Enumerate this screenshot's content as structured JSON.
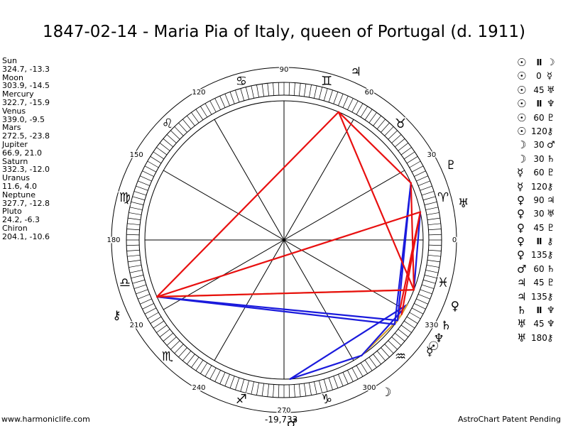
{
  "title": "1847-02-14 - Maria Pia of Italy, queen of Portugal (d. 1911)",
  "planets": [
    {
      "name": "Sun",
      "value": "324.7, -13.3"
    },
    {
      "name": "Moon",
      "value": "303.9, -14.5"
    },
    {
      "name": "Mercury",
      "value": "322.7, -15.9"
    },
    {
      "name": "Venus",
      "value": "339.0, -9.5"
    },
    {
      "name": "Mars",
      "value": "272.5, -23.8"
    },
    {
      "name": "Jupiter",
      "value": "66.9, 21.0"
    },
    {
      "name": "Saturn",
      "value": "332.3, -12.0"
    },
    {
      "name": "Uranus",
      "value": "11.6, 4.0"
    },
    {
      "name": "Neptune",
      "value": "327.7, -12.8"
    },
    {
      "name": "Pluto",
      "value": "24.2, -6.3"
    },
    {
      "name": "Chiron",
      "value": "204.1, -10.6"
    }
  ],
  "aspects": [
    {
      "p1": "☉",
      "sym": "II",
      "p2": "☽"
    },
    {
      "p1": "☉",
      "sym": "0",
      "p2": "☿"
    },
    {
      "p1": "☉",
      "sym": "45",
      "p2": "♅"
    },
    {
      "p1": "☉",
      "sym": "II",
      "p2": "♆"
    },
    {
      "p1": "☉",
      "sym": "60",
      "p2": "♇"
    },
    {
      "p1": "☉",
      "sym": "120",
      "p2": "⚷"
    },
    {
      "p1": "☽",
      "sym": "30",
      "p2": "♂"
    },
    {
      "p1": "☽",
      "sym": "30",
      "p2": "♄"
    },
    {
      "p1": "☿",
      "sym": "60",
      "p2": "♇"
    },
    {
      "p1": "☿",
      "sym": "120",
      "p2": "⚷"
    },
    {
      "p1": "♀",
      "sym": "90",
      "p2": "♃"
    },
    {
      "p1": "♀",
      "sym": "30",
      "p2": "♅"
    },
    {
      "p1": "♀",
      "sym": "45",
      "p2": "♇"
    },
    {
      "p1": "♀",
      "sym": "II",
      "p2": "⚷"
    },
    {
      "p1": "♀",
      "sym": "135",
      "p2": "⚷"
    },
    {
      "p1": "♂",
      "sym": "60",
      "p2": "♄"
    },
    {
      "p1": "♃",
      "sym": "45",
      "p2": "♇"
    },
    {
      "p1": "♃",
      "sym": "135",
      "p2": "⚷"
    },
    {
      "p1": "♄",
      "sym": "II",
      "p2": "♆"
    },
    {
      "p1": "♅",
      "sym": "45",
      "p2": "♆"
    },
    {
      "p1": "♅",
      "sym": "180",
      "p2": "⚷"
    }
  ],
  "wheel": {
    "degree_labels": [
      "0",
      "30",
      "60",
      "90",
      "120",
      "150",
      "180",
      "210",
      "240",
      "270",
      "300",
      "330"
    ],
    "sign_glyphs": [
      "♈",
      "♉",
      "♊",
      "♋",
      "♌",
      "♍",
      "♎",
      "♏",
      "♐",
      "♑",
      "♒",
      "♓"
    ],
    "planet_glyphs": [
      "☉",
      "☽",
      "☿",
      "♀",
      "♂",
      "♃",
      "♄",
      "♅",
      "♆",
      "♇",
      "⚷"
    ],
    "colors": {
      "red": "#e81010",
      "blue": "#1a1adc",
      "gold": "#d4a030"
    }
  },
  "bottom_coord": "-19,733",
  "footer_left": "www.harmoniclife.com",
  "footer_right": "AstroChart Patent Pending"
}
